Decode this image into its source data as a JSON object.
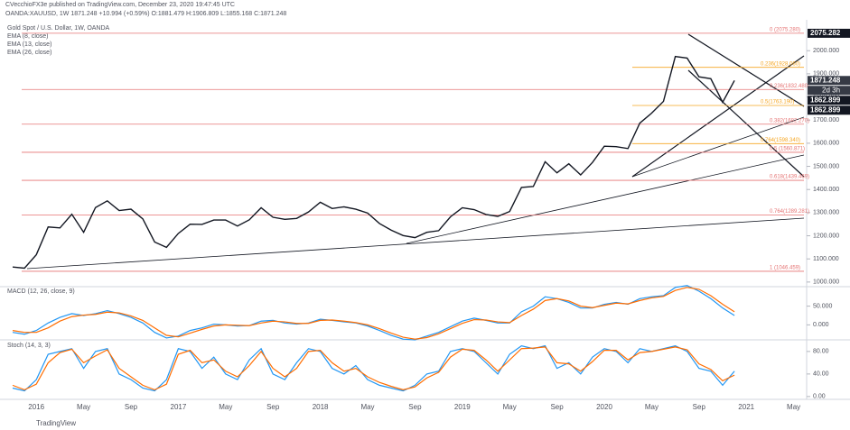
{
  "header": {
    "publisher": "CVecchioFX3e published on TradingView.com, December 23, 2020 19:47:45 UTC",
    "symbol_line": "OANDA:XAUUSD, 1W 1871.248 +10.994 (+0.59%) O:1881.479 H:1906.809 L:1855.168 C:1871.248",
    "footer": "TradingView"
  },
  "chart_data": [
    {
      "type": "line",
      "title": "Gold Spot / U.S. Dollar, 1W, OANDA",
      "legend": [
        "EMA (8, close)",
        "EMA (13, close)",
        "EMA (26, close)"
      ],
      "categories": [
        null,
        null,
        "2016",
        null,
        null,
        null,
        "May",
        null,
        null,
        null,
        "Sep",
        null,
        null,
        null,
        "2017",
        null,
        null,
        null,
        "May",
        null,
        null,
        null,
        "Sep",
        null,
        null,
        null,
        "2018",
        null,
        null,
        null,
        "May",
        null,
        null,
        null,
        "Sep",
        null,
        null,
        null,
        "2019",
        null,
        null,
        null,
        "May",
        null,
        null,
        null,
        "Sep",
        null,
        null,
        null,
        "2020",
        null,
        null,
        null,
        "May",
        null,
        null,
        null,
        "Sep",
        null,
        null,
        null,
        "2021",
        null,
        null,
        null,
        "May"
      ],
      "series": [
        {
          "name": "XAUUSD",
          "color": "#131722",
          "values": [
            1065,
            1060,
            1118,
            1238,
            1234,
            1293,
            1215,
            1322,
            1351,
            1309,
            1315,
            1273,
            1173,
            1150,
            1210,
            1250,
            1249,
            1268,
            1268,
            1242,
            1269,
            1321,
            1280,
            1271,
            1275,
            1303,
            1345,
            1318,
            1325,
            1315,
            1298,
            1253,
            1224,
            1201,
            1192,
            1215,
            1222,
            1282,
            1321,
            1313,
            1292,
            1284,
            1305,
            1409,
            1413,
            1520,
            1472,
            1511,
            1463,
            1517,
            1587,
            1585,
            1577,
            1687,
            1730,
            1781,
            1975,
            1968,
            1887,
            1879,
            1777,
            1871,
            null,
            null,
            null,
            null,
            null
          ]
        }
      ],
      "ylim": [
        980,
        2110
      ],
      "yticks": [
        {
          "value": 1000,
          "label": "1000.000"
        },
        {
          "value": 1100,
          "label": "1100.000"
        },
        {
          "value": 1200,
          "label": "1200.000"
        },
        {
          "value": 1300,
          "label": "1300.000"
        },
        {
          "value": 1400,
          "label": "1400.000"
        },
        {
          "value": 1500,
          "label": "1500.000"
        },
        {
          "value": 1600,
          "label": "1600.000"
        },
        {
          "value": 1700,
          "label": "1700.000"
        },
        {
          "value": 1800,
          "label": "1800.000"
        },
        {
          "value": 1900,
          "label": "1900.000"
        },
        {
          "value": 2000,
          "label": "2000.000"
        }
      ],
      "levels": [
        {
          "value": 2075.28,
          "label": "0 (2075.280)",
          "color": "#e57373"
        },
        {
          "value": 1832.48,
          "label": "0.236(1832.480)",
          "color": "#e57373"
        },
        {
          "value": 1682.27,
          "label": "0.382(1682.270)",
          "color": "#e57373"
        },
        {
          "value": 1560.87,
          "label": "0.5 (1560.871)",
          "color": "#e57373"
        },
        {
          "value": 1439.47,
          "label": "0.618(1439.469)",
          "color": "#e57373"
        },
        {
          "value": 1289.28,
          "label": "0.764(1289.281)",
          "color": "#e57373"
        },
        {
          "value": 1046.459,
          "label": "1 (1046.459)",
          "color": "#e57373"
        },
        {
          "value": 1928.06,
          "label": "0.236(1928.060)",
          "color": "#f5a623"
        },
        {
          "value": 1763.19,
          "label": "0.5(1763.190)",
          "color": "#f5a623"
        },
        {
          "value": 1598.34,
          "label": "0.764(1598.340)",
          "color": "#f5a623"
        }
      ],
      "price_labels": [
        2075.282,
        1871.248,
        1862.899,
        1862.899
      ],
      "countdown": "2d 3h"
    },
    {
      "type": "line",
      "title": "MACD (12, 26, close, 9)",
      "series": [
        {
          "name": "MACD",
          "color": "#2196f3",
          "values": [
            -20,
            -25,
            -15,
            5,
            20,
            30,
            25,
            30,
            38,
            30,
            20,
            5,
            -20,
            -35,
            -30,
            -15,
            -8,
            2,
            0,
            -3,
            -2,
            10,
            12,
            5,
            2,
            5,
            15,
            12,
            8,
            5,
            -3,
            -15,
            -28,
            -38,
            -40,
            -30,
            -20,
            -5,
            10,
            18,
            12,
            5,
            5,
            35,
            50,
            75,
            70,
            60,
            45,
            45,
            55,
            60,
            55,
            70,
            75,
            78,
            100,
            105,
            90,
            70,
            45,
            25,
            null,
            null,
            null,
            null,
            null
          ]
        },
        {
          "name": "Signal",
          "color": "#ff6d00",
          "values": [
            -15,
            -20,
            -20,
            -8,
            10,
            22,
            26,
            28,
            34,
            32,
            24,
            12,
            -8,
            -28,
            -32,
            -22,
            -12,
            -3,
            0,
            -1,
            -2,
            5,
            10,
            8,
            4,
            4,
            12,
            13,
            10,
            6,
            0,
            -10,
            -22,
            -33,
            -38,
            -34,
            -24,
            -10,
            4,
            14,
            13,
            8,
            6,
            25,
            42,
            65,
            70,
            64,
            50,
            46,
            52,
            58,
            56,
            65,
            72,
            76,
            92,
            100,
            95,
            78,
            55,
            35,
            null,
            null,
            null,
            null,
            null
          ]
        }
      ],
      "ylim": [
        -40,
        102
      ],
      "yticks": [
        {
          "value": 50,
          "label": "50.000"
        },
        {
          "value": 0,
          "label": "0.000"
        }
      ]
    },
    {
      "type": "line",
      "title": "Stoch (14, 3, 3)",
      "series": [
        {
          "name": "%K",
          "color": "#2196f3",
          "values": [
            15,
            10,
            30,
            75,
            80,
            85,
            50,
            80,
            85,
            40,
            30,
            15,
            10,
            30,
            85,
            80,
            50,
            70,
            40,
            30,
            65,
            85,
            40,
            30,
            60,
            85,
            80,
            50,
            40,
            55,
            30,
            20,
            15,
            10,
            20,
            40,
            45,
            80,
            85,
            80,
            60,
            40,
            75,
            90,
            85,
            90,
            50,
            60,
            40,
            70,
            85,
            80,
            60,
            85,
            80,
            85,
            90,
            80,
            50,
            45,
            20,
            45,
            null,
            null,
            null,
            null,
            null
          ]
        },
        {
          "name": "%D",
          "color": "#ff6d00",
          "values": [
            20,
            12,
            22,
            60,
            78,
            84,
            60,
            72,
            83,
            50,
            35,
            20,
            12,
            22,
            75,
            82,
            60,
            65,
            45,
            35,
            55,
            80,
            50,
            35,
            50,
            80,
            82,
            60,
            45,
            50,
            35,
            25,
            18,
            12,
            17,
            33,
            43,
            70,
            84,
            82,
            65,
            45,
            65,
            85,
            86,
            88,
            60,
            58,
            45,
            62,
            82,
            82,
            65,
            78,
            80,
            84,
            88,
            83,
            58,
            48,
            28,
            38,
            null,
            null,
            null,
            null,
            null
          ]
        }
      ],
      "ylim": [
        -5,
        99
      ],
      "yticks": [
        {
          "value": 80,
          "label": "80.00"
        },
        {
          "value": 40,
          "label": "40.00"
        },
        {
          "value": 0,
          "label": "0.00"
        }
      ]
    }
  ]
}
